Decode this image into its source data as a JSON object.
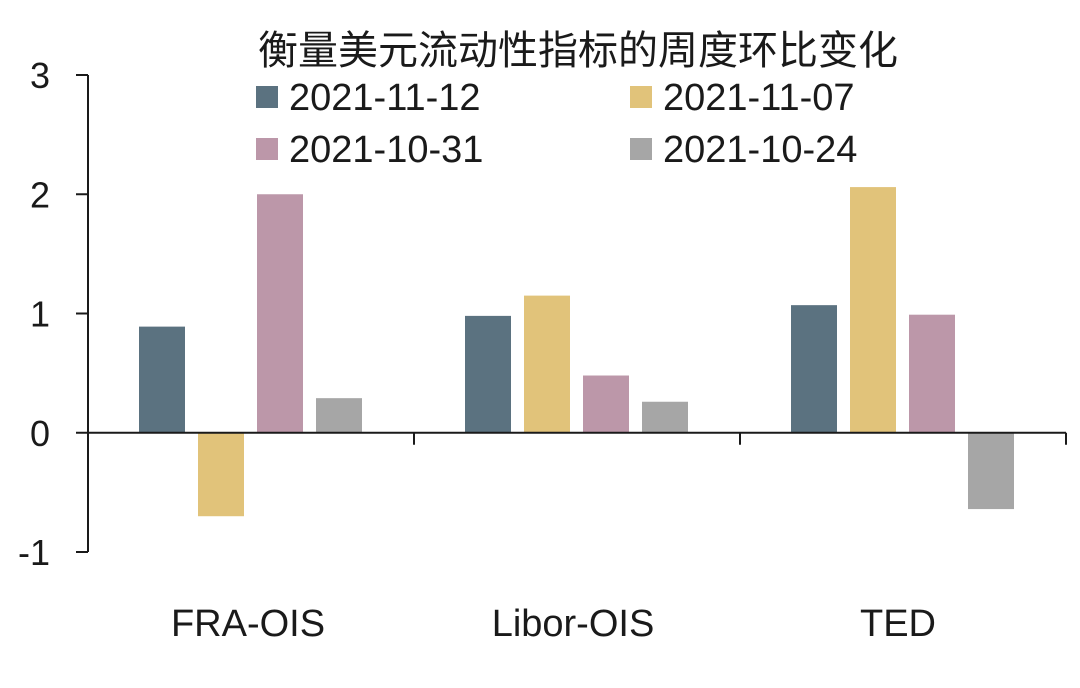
{
  "chart_data": {
    "type": "bar",
    "title": "衡量美元流动性指标的周度环比变化",
    "xlabel": "",
    "ylabel": "",
    "categories": [
      "FRA-OIS",
      "Libor-OIS",
      "TED"
    ],
    "series": [
      {
        "name": "2021-11-12",
        "color": "#5b7280",
        "values": [
          0.89,
          0.98,
          1.07
        ]
      },
      {
        "name": "2021-11-07",
        "color": "#e1c37a",
        "values": [
          -0.7,
          1.15,
          2.06
        ]
      },
      {
        "name": "2021-10-31",
        "color": "#bc97a9",
        "values": [
          2.0,
          0.48,
          0.99
        ]
      },
      {
        "name": "2021-10-24",
        "color": "#a6a6a6",
        "values": [
          0.29,
          0.26,
          -0.64
        ]
      }
    ],
    "ylim": [
      -1,
      3
    ],
    "yticks": [
      "-1",
      "0",
      "1",
      "2",
      "3"
    ],
    "legend": "top",
    "grid": false
  }
}
